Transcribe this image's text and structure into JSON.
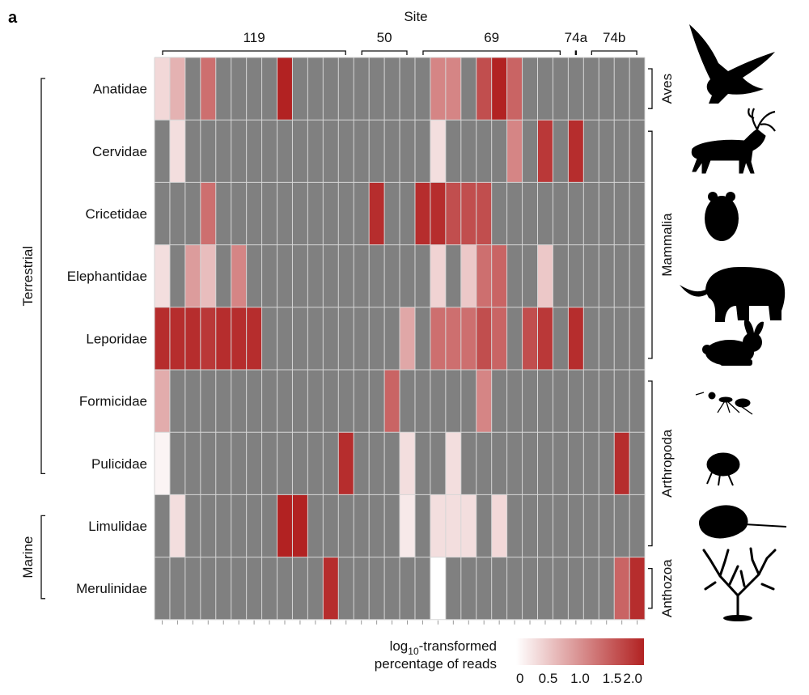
{
  "chart_data": {
    "type": "heatmap",
    "panel_label": "a",
    "x_title": "Site",
    "site_groups": [
      {
        "label": "119",
        "columns": 13
      },
      {
        "label": "50",
        "columns": 4
      },
      {
        "label": "69",
        "columns": 10
      },
      {
        "label": "74a",
        "columns": 1
      },
      {
        "label": "74b",
        "columns": 4
      }
    ],
    "rows": [
      "Anatidae",
      "Cervidae",
      "Cricetidae",
      "Elephantidae",
      "Leporidae",
      "Formicidae",
      "Pulicidae",
      "Limulidae",
      "Merulinidae"
    ],
    "habitat_groups": [
      {
        "label": "Terrestrial",
        "first_row": 0,
        "last_row": 6
      },
      {
        "label": "Marine",
        "first_row": 7,
        "last_row": 8
      }
    ],
    "taxon_groups": [
      {
        "label": "Aves",
        "first_row": 0,
        "last_row": 0
      },
      {
        "label": "Mammalia",
        "first_row": 1,
        "last_row": 4
      },
      {
        "label": "Arthropoda",
        "first_row": 5,
        "last_row": 7
      },
      {
        "label": "Anthozoa",
        "first_row": 8,
        "last_row": 8
      }
    ],
    "silhouettes": [
      "bird-icon",
      "caribou-icon",
      "hamster-icon",
      "mammoth-icon",
      "rabbit-icon",
      "ant-icon",
      "flea-icon",
      "horseshoe-crab-icon",
      "coral-icon"
    ],
    "values": [
      [
        0.35,
        0.7,
        null,
        1.3,
        null,
        null,
        null,
        null,
        2.0,
        null,
        null,
        null,
        null,
        null,
        null,
        null,
        null,
        null,
        1.1,
        1.1,
        null,
        1.6,
        2.0,
        1.4,
        null,
        null,
        null,
        null,
        null,
        null,
        null,
        null
      ],
      [
        null,
        0.3,
        null,
        null,
        null,
        null,
        null,
        null,
        null,
        null,
        null,
        null,
        null,
        null,
        null,
        null,
        null,
        null,
        0.3,
        null,
        null,
        null,
        null,
        1.1,
        null,
        1.8,
        null,
        1.9,
        null,
        null,
        null,
        null
      ],
      [
        null,
        null,
        null,
        1.3,
        null,
        null,
        null,
        null,
        null,
        null,
        null,
        null,
        null,
        null,
        1.9,
        null,
        null,
        1.9,
        1.9,
        1.6,
        1.6,
        1.6,
        null,
        null,
        null,
        null,
        null,
        null,
        null,
        null,
        null,
        null
      ],
      [
        0.3,
        null,
        0.9,
        0.6,
        null,
        1.1,
        null,
        null,
        null,
        null,
        null,
        null,
        null,
        null,
        null,
        null,
        null,
        null,
        0.4,
        null,
        0.5,
        1.3,
        1.4,
        null,
        null,
        0.5,
        null,
        null,
        null,
        null,
        null,
        null
      ],
      [
        1.9,
        1.9,
        1.9,
        1.8,
        1.9,
        1.9,
        1.9,
        null,
        null,
        null,
        null,
        null,
        null,
        null,
        null,
        null,
        0.8,
        null,
        1.3,
        1.3,
        1.3,
        1.6,
        1.4,
        null,
        1.6,
        1.8,
        null,
        1.9,
        null,
        null,
        null,
        null
      ],
      [
        0.75,
        null,
        null,
        null,
        null,
        null,
        null,
        null,
        null,
        null,
        null,
        null,
        null,
        null,
        null,
        1.4,
        null,
        null,
        null,
        null,
        null,
        1.1,
        null,
        null,
        null,
        null,
        null,
        null,
        null,
        null,
        null,
        null
      ],
      [
        0.1,
        null,
        null,
        null,
        null,
        null,
        null,
        null,
        null,
        null,
        null,
        null,
        1.9,
        null,
        null,
        null,
        0.3,
        null,
        null,
        0.3,
        null,
        null,
        null,
        null,
        null,
        null,
        null,
        null,
        null,
        null,
        1.9,
        null
      ],
      [
        null,
        0.3,
        null,
        null,
        null,
        null,
        null,
        null,
        2.0,
        2.0,
        null,
        null,
        null,
        null,
        null,
        null,
        0.2,
        null,
        0.3,
        0.3,
        0.3,
        null,
        0.35,
        null,
        null,
        null,
        null,
        null,
        null,
        null,
        null,
        null
      ],
      [
        null,
        null,
        null,
        null,
        null,
        null,
        null,
        null,
        null,
        null,
        null,
        1.9,
        null,
        null,
        null,
        null,
        null,
        null,
        0.0,
        null,
        null,
        null,
        null,
        null,
        null,
        null,
        null,
        null,
        null,
        null,
        1.4,
        1.9
      ]
    ],
    "missing_color": "#808080",
    "color_low": "#ffffff",
    "color_high": "#b22222",
    "colorbar": {
      "title_prefix": "log",
      "title_subscript": "10",
      "title_rest": "-transformed",
      "title_line2": "percentage of reads",
      "range": [
        0,
        2.0
      ],
      "ticks": [
        "0",
        "0.5",
        "1.0",
        "1.5",
        "2.0"
      ]
    }
  }
}
